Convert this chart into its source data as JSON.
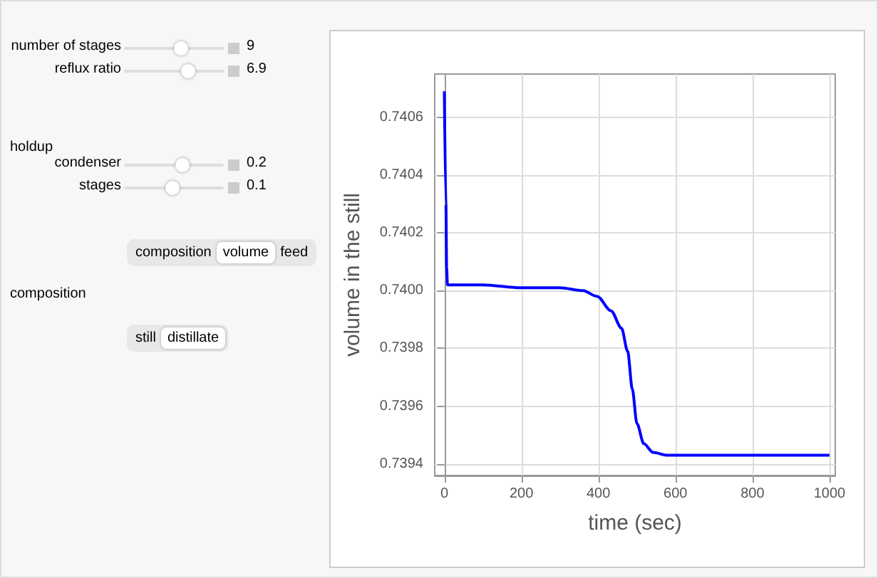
{
  "chart_data": {
    "type": "line",
    "xlabel": "time (sec)",
    "ylabel": "volume in the still",
    "x": [
      0,
      2,
      4,
      6,
      8,
      50,
      100,
      200,
      300,
      360,
      397,
      433,
      460,
      476,
      488,
      500,
      518,
      542,
      579,
      700,
      850,
      1000
    ],
    "series": [
      {
        "color": "#0000ff",
        "values": [
          0.74069,
          0.74069,
          0.7403,
          0.74008,
          0.74002,
          0.74002,
          0.74002,
          0.74001,
          0.74001,
          0.74,
          0.73998,
          0.73993,
          0.73987,
          0.73979,
          0.73966,
          0.73954,
          0.73947,
          0.73944,
          0.73943,
          0.73943,
          0.73943,
          0.73943
        ]
      }
    ],
    "xlim": [
      -25,
      1015
    ],
    "ylim": [
      0.73936,
      0.74075
    ],
    "xticks": [
      0,
      200,
      400,
      600,
      800,
      1000
    ],
    "yticks": [
      0.7394,
      0.7396,
      0.7398,
      {
        "value": 0.74,
        "label": "0.7400"
      },
      0.7402,
      0.7404,
      0.7406
    ],
    "grid": true,
    "line_style": "solid",
    "marker": "none",
    "annotations": [
      "number of stages",
      "9",
      "reflux ratio",
      "6.9",
      "holdup",
      "condenser",
      "0.2",
      "stages",
      "0.1",
      "composition",
      "volume",
      "feed",
      "composition",
      "still",
      "distillate"
    ]
  }
}
